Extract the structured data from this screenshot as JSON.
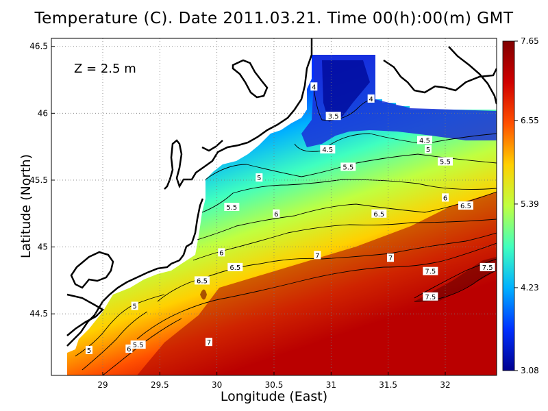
{
  "chart_data": {
    "type": "heatmap",
    "title": "Temperature (C). Date 2011.03.21. Time 00(h):00(m) GMT",
    "xlabel": "Longitude (East)",
    "ylabel": "Latitude (North)",
    "annotation": "Z = 2.5 m",
    "xlim": [
      28.55,
      32.45
    ],
    "ylim": [
      44.04,
      46.56
    ],
    "x_ticks": [
      29,
      29.5,
      30,
      30.5,
      31,
      31.5,
      32
    ],
    "x_tick_labels": [
      "29",
      "29.5",
      "30",
      "30.5",
      "31",
      "31.5",
      "32"
    ],
    "y_ticks": [
      44.5,
      45,
      45.5,
      46,
      46.5
    ],
    "y_tick_labels": [
      "44.5",
      "45",
      "45.5",
      "46",
      "46.5"
    ],
    "grid": true,
    "colorbar": {
      "min": 3.08,
      "max": 7.65,
      "ticks": [
        3.08,
        4.23,
        5.39,
        6.55,
        7.65
      ],
      "tick_labels": [
        "3.08",
        "4.23",
        "5.39",
        "6.55",
        "7.65"
      ],
      "colormap": [
        "#00008f",
        "#0030ff",
        "#00b0ff",
        "#40ffbf",
        "#c0ff40",
        "#ffd000",
        "#ff5000",
        "#d00000",
        "#800000"
      ]
    },
    "contour_labels": [
      {
        "text": "4",
        "x": 30.85,
        "y": 46.2
      },
      {
        "text": "4",
        "x": 31.35,
        "y": 46.11
      },
      {
        "text": "3.5",
        "x": 31.02,
        "y": 45.98
      },
      {
        "text": "4.5",
        "x": 30.97,
        "y": 45.73
      },
      {
        "text": "4.5",
        "x": 31.82,
        "y": 45.8
      },
      {
        "text": "5",
        "x": 31.85,
        "y": 45.73
      },
      {
        "text": "5.5",
        "x": 32.0,
        "y": 45.64
      },
      {
        "text": "5.5",
        "x": 31.15,
        "y": 45.6
      },
      {
        "text": "5",
        "x": 30.37,
        "y": 45.52
      },
      {
        "text": "6",
        "x": 32.0,
        "y": 45.37
      },
      {
        "text": "6.5",
        "x": 32.18,
        "y": 45.31
      },
      {
        "text": "5.5",
        "x": 30.13,
        "y": 45.3
      },
      {
        "text": "6",
        "x": 30.52,
        "y": 45.25
      },
      {
        "text": "6.5",
        "x": 31.42,
        "y": 45.25
      },
      {
        "text": "6",
        "x": 30.04,
        "y": 44.96
      },
      {
        "text": "7",
        "x": 30.88,
        "y": 44.94
      },
      {
        "text": "7",
        "x": 31.52,
        "y": 44.92
      },
      {
        "text": "6.5",
        "x": 30.16,
        "y": 44.85
      },
      {
        "text": "6.5",
        "x": 29.87,
        "y": 44.75
      },
      {
        "text": "7.5",
        "x": 31.87,
        "y": 44.82
      },
      {
        "text": "7.5",
        "x": 32.37,
        "y": 44.85
      },
      {
        "text": "5",
        "x": 29.28,
        "y": 44.56
      },
      {
        "text": "7.5",
        "x": 31.87,
        "y": 44.63
      },
      {
        "text": "5.5",
        "x": 29.31,
        "y": 44.27
      },
      {
        "text": "6",
        "x": 29.23,
        "y": 44.24
      },
      {
        "text": "5",
        "x": 28.88,
        "y": 44.23
      },
      {
        "text": "7",
        "x": 29.93,
        "y": 44.29
      }
    ]
  }
}
